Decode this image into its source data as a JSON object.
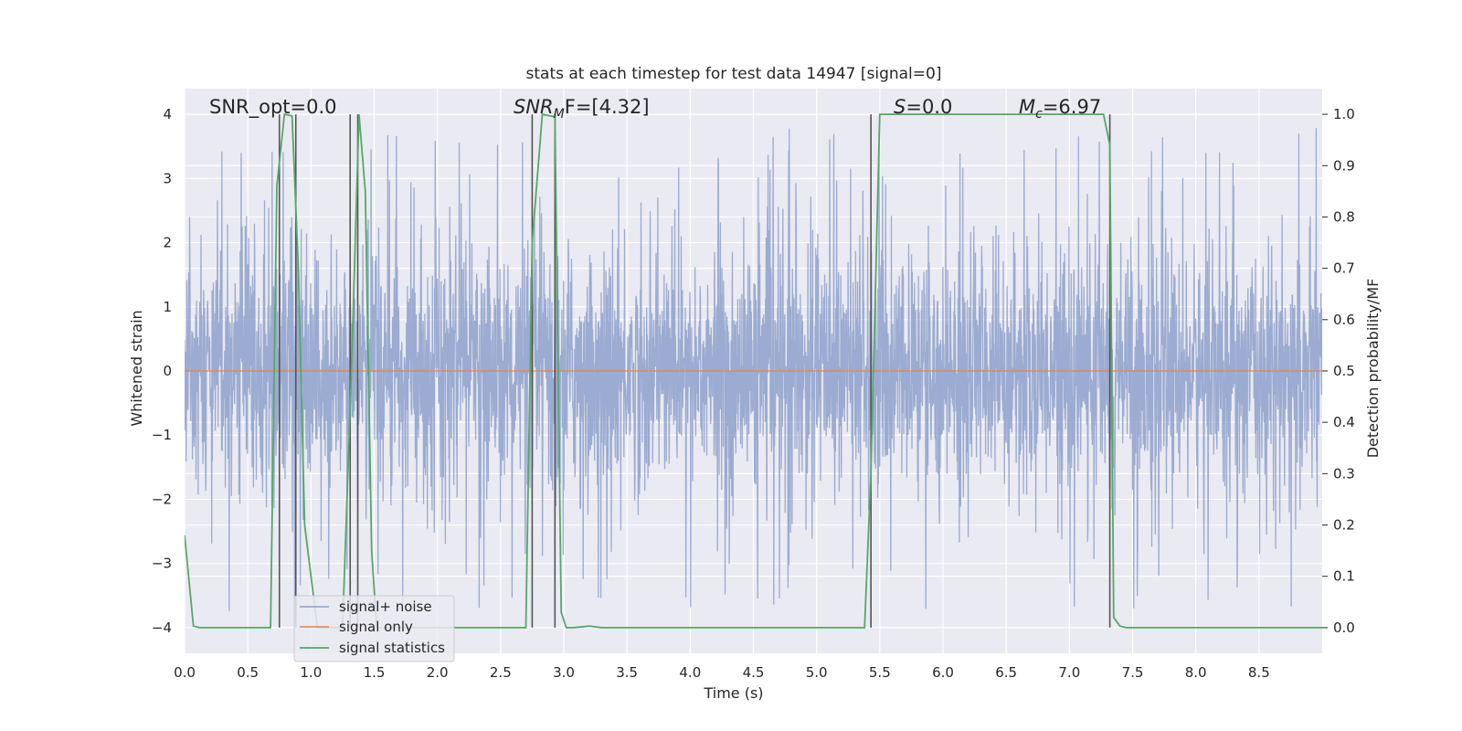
{
  "chart_data": {
    "type": "line",
    "title": "stats at each timestep for test data 14947 [signal=0]",
    "xlabel": "Time (s)",
    "ylabel_left": "Whitened strain",
    "ylabel_right": "Detection probability/MF",
    "xlim": [
      0,
      9
    ],
    "ylim_left": [
      -4.4,
      4.4
    ],
    "ylim_right": [
      -0.05,
      1.05
    ],
    "x_ticks": [
      0.0,
      0.5,
      1.0,
      1.5,
      2.0,
      2.5,
      3.0,
      3.5,
      4.0,
      4.5,
      5.0,
      5.5,
      6.0,
      6.5,
      7.0,
      7.5,
      8.0,
      8.5
    ],
    "x_tick_labels": [
      "0.0",
      "0.5",
      "1.0",
      "1.5",
      "2.0",
      "2.5",
      "3.0",
      "3.5",
      "4.0",
      "4.5",
      "5.0",
      "5.5",
      "6.0",
      "6.5",
      "7.0",
      "7.5",
      "8.0",
      "8.5"
    ],
    "y_left_ticks": [
      4,
      3,
      2,
      1,
      0,
      -1,
      -2,
      -3,
      -4
    ],
    "y_left_tick_labels": [
      "4",
      "3",
      "2",
      "1",
      "0",
      "−1",
      "−2",
      "−3",
      "−4"
    ],
    "y_right_ticks": [
      1.0,
      0.9,
      0.8,
      0.7,
      0.6,
      0.5,
      0.4,
      0.3,
      0.2,
      0.1,
      0.0
    ],
    "y_right_tick_labels": [
      "1.0",
      "0.9",
      "0.8",
      "0.7",
      "0.6",
      "0.5",
      "0.4",
      "0.3",
      "0.2",
      "0.1",
      "0.0"
    ],
    "grid": true,
    "legend_position": "lower-left",
    "annotations": {
      "snr_opt": "SNR_opt=0.0",
      "snr_mf_prefix": "SNR",
      "snr_mf_sub": "M",
      "snr_mf_suffix": "F=[4.32]",
      "s_prefix": "S",
      "s_suffix": "=0.0",
      "mc_prefix": "M",
      "mc_sub": "c",
      "mc_suffix": "=6.97"
    },
    "series": [
      {
        "name": "signal+ noise",
        "color": "#8da0cb",
        "axis": "left",
        "description_values": "whitened noise, approximately Gaussian, amplitude mostly within ±1.6, peaks up to about ±3.8",
        "amplitude_typical": 1.6,
        "amplitude_max": 3.8
      },
      {
        "name": "signal only",
        "color": "#dd8452",
        "axis": "left",
        "values_constant": 0
      },
      {
        "name": "signal statistics",
        "color": "#55a868",
        "axis": "right",
        "x": [
          0.0,
          0.07,
          0.12,
          0.68,
          0.73,
          0.79,
          0.85,
          0.9,
          0.95,
          1.05,
          1.25,
          1.32,
          1.38,
          1.43,
          1.48,
          1.52,
          1.6,
          2.7,
          2.75,
          2.83,
          2.93,
          2.98,
          3.02,
          3.08,
          3.2,
          3.3,
          5.38,
          5.43,
          5.5,
          7.27,
          7.32,
          7.35,
          7.4,
          7.45,
          9.0
        ],
        "values": [
          0.18,
          0.003,
          0.0,
          0.0,
          0.86,
          1.0,
          0.997,
          0.7,
          0.2,
          0.0,
          0.0,
          0.5,
          1.0,
          0.85,
          0.15,
          0.0,
          0.0,
          0.0,
          0.75,
          1.0,
          0.995,
          0.03,
          0.0,
          0.0,
          0.003,
          0.0,
          0.0,
          0.3,
          1.0,
          1.0,
          0.94,
          0.02,
          0.003,
          0.0,
          0.0
        ]
      }
    ],
    "vertical_markers": {
      "color": "#555555",
      "x": [
        0.75,
        0.88,
        1.31,
        1.37,
        2.75,
        2.93,
        5.43,
        7.32
      ]
    }
  }
}
